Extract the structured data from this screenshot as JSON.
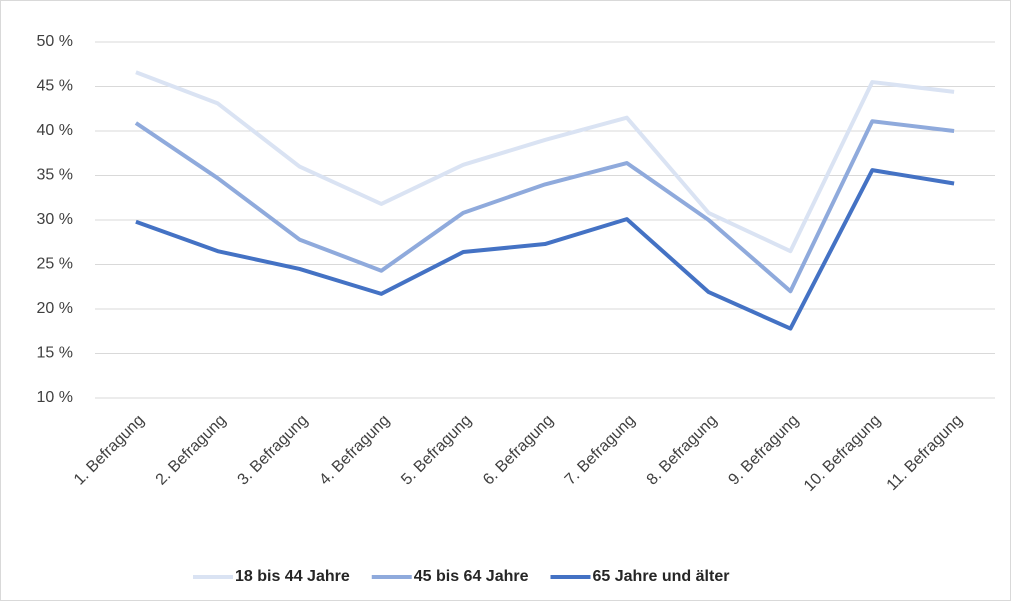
{
  "chart_data": {
    "type": "line",
    "categories": [
      "1. Befragung",
      "2. Befragung",
      "3. Befragung",
      "4. Befragung",
      "5. Befragung",
      "6. Befragung",
      "7. Befragung",
      "8. Befragung",
      "9. Befragung",
      "10. Befragung",
      "11. Befragung"
    ],
    "series": [
      {
        "name": "18 bis 44 Jahre",
        "color": "#dae3f3",
        "values": [
          46.6,
          43.1,
          36.0,
          31.8,
          36.2,
          39.0,
          41.5,
          30.8,
          26.5,
          45.5,
          44.4
        ]
      },
      {
        "name": "45 bis 64 Jahre",
        "color": "#8faadc",
        "values": [
          40.9,
          34.7,
          27.8,
          24.3,
          30.8,
          34.0,
          36.4,
          30.0,
          22.0,
          41.1,
          40.0
        ]
      },
      {
        "name": "65 Jahre und älter",
        "color": "#4472c4",
        "values": [
          29.8,
          26.5,
          24.5,
          21.7,
          26.4,
          27.3,
          30.1,
          21.9,
          17.8,
          35.6,
          34.1
        ]
      }
    ],
    "ylim": [
      10,
      50
    ],
    "yticks": [
      {
        "value": 10,
        "label": "10 %"
      },
      {
        "value": 15,
        "label": "15 %"
      },
      {
        "value": 20,
        "label": "20 %"
      },
      {
        "value": 25,
        "label": "25 %"
      },
      {
        "value": 30,
        "label": "30 %"
      },
      {
        "value": 35,
        "label": "35 %"
      },
      {
        "value": 40,
        "label": "40 %"
      },
      {
        "value": 45,
        "label": "45 %"
      },
      {
        "value": 50,
        "label": "50 %"
      }
    ],
    "grid": true,
    "legend": "bottom"
  }
}
